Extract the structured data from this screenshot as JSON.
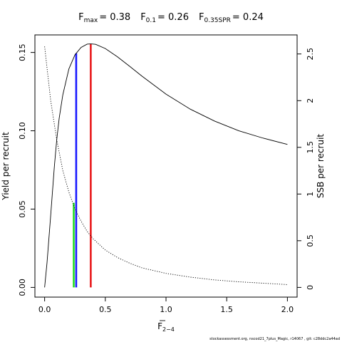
{
  "chart_data": {
    "type": "line",
    "title": {
      "parts": [
        {
          "main": "F",
          "sub": "max",
          "value": "= 0.38"
        },
        {
          "main": "F",
          "sub": "0.1",
          "value": "= 0.26"
        },
        {
          "main": "F",
          "sub": "0.35SPR",
          "value": "= 0.24"
        }
      ]
    },
    "xlabel": {
      "main": "F",
      "sub": "2−4",
      "overline": true
    },
    "ylabel_left": "Yield per recruit",
    "ylabel_right": "SSB per recruit",
    "xlim": [
      -0.08,
      2.08
    ],
    "ylim_left": [
      -0.0062,
      0.1612
    ],
    "ylim_right": [
      -0.104,
      2.704
    ],
    "x_ticks": [
      0,
      0.5,
      1,
      1.5,
      2
    ],
    "x_tick_labels": [
      "0.0",
      "0.5",
      "1.0",
      "1.5",
      "2.0"
    ],
    "y_left_ticks": [
      0,
      0.05,
      0.1,
      0.15
    ],
    "y_left_tick_labels": [
      "0.00",
      "0.05",
      "0.10",
      "0.15"
    ],
    "y_right_ticks": [
      0,
      0.5,
      1,
      1.5,
      2,
      2.5
    ],
    "y_right_tick_labels": [
      "0",
      "0.5",
      "1",
      "1.5",
      "2",
      "2.5"
    ],
    "series": [
      {
        "axis": "left",
        "style": "solid",
        "color": "#000000",
        "x": [
          0,
          0.02,
          0.05,
          0.08,
          0.1,
          0.12,
          0.15,
          0.2,
          0.25,
          0.3,
          0.35,
          0.38,
          0.42,
          0.5,
          0.6,
          0.7,
          0.8,
          0.9,
          1.0,
          1.2,
          1.4,
          1.6,
          1.8,
          2.0
        ],
        "y": [
          0.0,
          0.016,
          0.046,
          0.077,
          0.0945,
          0.108,
          0.123,
          0.1395,
          0.1485,
          0.1532,
          0.1553,
          0.1555,
          0.1552,
          0.1525,
          0.1472,
          0.1412,
          0.135,
          0.1292,
          0.1234,
          0.1138,
          0.1062,
          0.1,
          0.0953,
          0.0913
        ]
      },
      {
        "axis": "right",
        "style": "dotted",
        "color": "#000000",
        "x": [
          0,
          0.05,
          0.1,
          0.15,
          0.2,
          0.25,
          0.3,
          0.35,
          0.4,
          0.5,
          0.6,
          0.7,
          0.8,
          1.0,
          1.2,
          1.4,
          1.6,
          1.8,
          2.0
        ],
        "y": [
          2.58,
          2.0,
          1.58,
          1.25,
          1.02,
          0.84,
          0.71,
          0.6,
          0.52,
          0.4,
          0.32,
          0.26,
          0.21,
          0.15,
          0.11,
          0.08,
          0.06,
          0.045,
          0.03
        ]
      }
    ],
    "reference_lines": [
      {
        "name": "Fmax",
        "x": 0.38,
        "y_top": 0.1555,
        "color": "#e8191b"
      },
      {
        "name": "F0.1",
        "x": 0.26,
        "y_top": 0.1495,
        "color": "#1a1aff"
      },
      {
        "name": "F0.35SPR",
        "x": 0.24,
        "y_top": 0.054,
        "color": "#22dd22"
      }
    ]
  },
  "footer": "stockassessment.org,  nscod21_7plus_Magic,  r14067 ,  git:  c28ddc2a44ad"
}
